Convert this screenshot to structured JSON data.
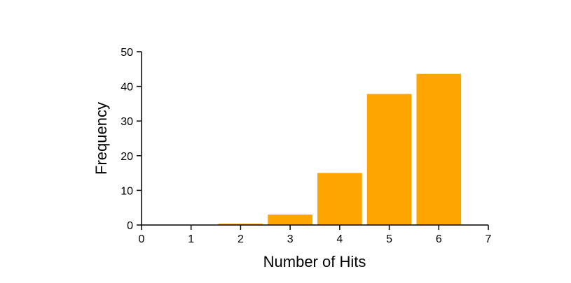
{
  "chart_data": {
    "type": "bar",
    "title": "",
    "xlabel": "Number of Hits",
    "ylabel": "Frequency",
    "x": [
      2,
      3,
      4,
      5,
      6
    ],
    "values": [
      0.4,
      3,
      15,
      37.8,
      43.6
    ],
    "xlim": [
      0,
      7
    ],
    "ylim": [
      0,
      50
    ],
    "xticks": [
      "0",
      "1",
      "2",
      "3",
      "4",
      "5",
      "6",
      "7"
    ],
    "yticks": [
      "0",
      "10",
      "20",
      "30",
      "40",
      "50"
    ],
    "bar_width": 0.9,
    "bar_color": "#FFA500",
    "grid": false,
    "legend": "none"
  }
}
